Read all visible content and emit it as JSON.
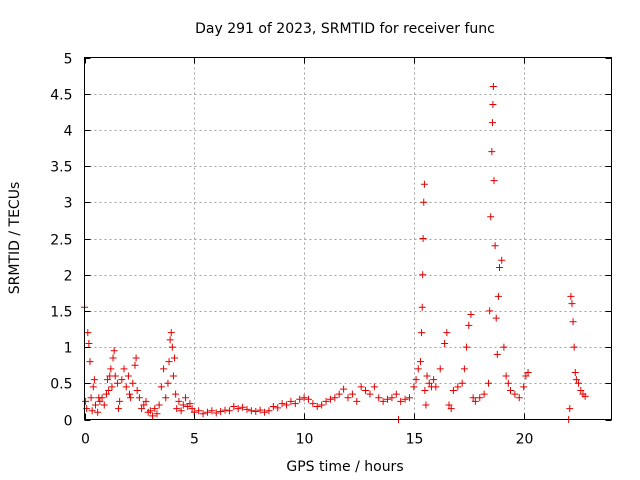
{
  "chart_data": {
    "type": "scatter",
    "title": "Day 291 of 2023, SRMTID for receiver func",
    "xlabel": "GPS time / hours",
    "ylabel": "SRMTID / TECUs",
    "xlim": [
      0,
      24
    ],
    "ylim": [
      0,
      5
    ],
    "x_ticks": [
      0,
      5,
      10,
      15,
      20
    ],
    "y_ticks": [
      0,
      0.5,
      1,
      1.5,
      2,
      2.5,
      3,
      3.5,
      4,
      4.5,
      5
    ],
    "x_tick_labels": [
      "0",
      "5",
      "10",
      "15",
      "20"
    ],
    "y_tick_labels": [
      "0",
      "0.5",
      "1",
      "1.5",
      "2",
      "2.5",
      "3",
      "3.5",
      "4",
      "4.5",
      "5"
    ],
    "grid": true,
    "marker": "plus",
    "color": "#e00000",
    "series": [
      {
        "name": "SRMTID",
        "points": [
          [
            0.0,
            1.55
          ],
          [
            0.05,
            0.25
          ],
          [
            0.1,
            0.15
          ],
          [
            0.15,
            1.2
          ],
          [
            0.2,
            1.05
          ],
          [
            0.25,
            0.8
          ],
          [
            0.3,
            0.3
          ],
          [
            0.35,
            0.12
          ],
          [
            0.4,
            0.45
          ],
          [
            0.45,
            0.55
          ],
          [
            0.5,
            0.2
          ],
          [
            0.6,
            0.1
          ],
          [
            0.65,
            0.3
          ],
          [
            0.7,
            0.25
          ],
          [
            0.8,
            0.3
          ],
          [
            0.9,
            0.2
          ],
          [
            1.0,
            0.35
          ],
          [
            1.05,
            0.55
          ],
          [
            1.1,
            0.4
          ],
          [
            1.15,
            0.6
          ],
          [
            1.2,
            0.7
          ],
          [
            1.25,
            0.45
          ],
          [
            1.3,
            0.85
          ],
          [
            1.35,
            0.95
          ],
          [
            1.4,
            0.6
          ],
          [
            1.5,
            0.5
          ],
          [
            1.55,
            0.15
          ],
          [
            1.6,
            0.25
          ],
          [
            1.7,
            0.55
          ],
          [
            1.8,
            0.7
          ],
          [
            1.9,
            0.45
          ],
          [
            2.0,
            0.6
          ],
          [
            2.05,
            0.35
          ],
          [
            2.1,
            0.3
          ],
          [
            2.2,
            0.5
          ],
          [
            2.3,
            0.75
          ],
          [
            2.35,
            0.85
          ],
          [
            2.4,
            0.4
          ],
          [
            2.5,
            0.3
          ],
          [
            2.6,
            0.15
          ],
          [
            2.7,
            0.2
          ],
          [
            2.8,
            0.25
          ],
          [
            2.9,
            0.1
          ],
          [
            3.0,
            0.12
          ],
          [
            3.1,
            0.05
          ],
          [
            3.2,
            0.15
          ],
          [
            3.3,
            0.08
          ],
          [
            3.4,
            0.2
          ],
          [
            3.5,
            0.45
          ],
          [
            3.6,
            0.7
          ],
          [
            3.7,
            0.3
          ],
          [
            3.8,
            0.5
          ],
          [
            3.85,
            0.8
          ],
          [
            3.9,
            1.1
          ],
          [
            3.95,
            1.2
          ],
          [
            4.0,
            1.0
          ],
          [
            4.05,
            0.6
          ],
          [
            4.1,
            0.85
          ],
          [
            4.15,
            0.35
          ],
          [
            4.2,
            0.15
          ],
          [
            4.3,
            0.25
          ],
          [
            4.4,
            0.12
          ],
          [
            4.5,
            0.2
          ],
          [
            4.6,
            0.3
          ],
          [
            4.7,
            0.18
          ],
          [
            4.8,
            0.22
          ],
          [
            4.9,
            0.15
          ],
          [
            5.0,
            0.1
          ],
          [
            5.2,
            0.12
          ],
          [
            5.4,
            0.08
          ],
          [
            5.6,
            0.1
          ],
          [
            5.8,
            0.12
          ],
          [
            6.0,
            0.09
          ],
          [
            6.2,
            0.11
          ],
          [
            6.4,
            0.13
          ],
          [
            6.6,
            0.12
          ],
          [
            6.8,
            0.18
          ],
          [
            7.0,
            0.15
          ],
          [
            7.2,
            0.17
          ],
          [
            7.4,
            0.14
          ],
          [
            7.6,
            0.12
          ],
          [
            7.8,
            0.11
          ],
          [
            8.0,
            0.13
          ],
          [
            8.2,
            0.1
          ],
          [
            8.4,
            0.12
          ],
          [
            8.6,
            0.18
          ],
          [
            8.8,
            0.16
          ],
          [
            9.0,
            0.22
          ],
          [
            9.2,
            0.2
          ],
          [
            9.4,
            0.25
          ],
          [
            9.6,
            0.22
          ],
          [
            9.8,
            0.28
          ],
          [
            10.0,
            0.3
          ],
          [
            10.2,
            0.28
          ],
          [
            10.4,
            0.22
          ],
          [
            10.6,
            0.18
          ],
          [
            10.8,
            0.2
          ],
          [
            11.0,
            0.25
          ],
          [
            11.2,
            0.28
          ],
          [
            11.4,
            0.3
          ],
          [
            11.6,
            0.35
          ],
          [
            11.8,
            0.42
          ],
          [
            12.0,
            0.3
          ],
          [
            12.2,
            0.35
          ],
          [
            12.4,
            0.25
          ],
          [
            12.6,
            0.45
          ],
          [
            12.8,
            0.4
          ],
          [
            13.0,
            0.35
          ],
          [
            13.2,
            0.45
          ],
          [
            13.4,
            0.3
          ],
          [
            13.6,
            0.25
          ],
          [
            13.8,
            0.28
          ],
          [
            14.0,
            0.3
          ],
          [
            14.2,
            0.35
          ],
          [
            14.4,
            0.25
          ],
          [
            14.6,
            0.28
          ],
          [
            14.8,
            0.3
          ],
          [
            15.0,
            0.45
          ],
          [
            15.1,
            0.55
          ],
          [
            15.2,
            0.7
          ],
          [
            15.3,
            0.8
          ],
          [
            15.35,
            1.2
          ],
          [
            15.38,
            1.55
          ],
          [
            15.4,
            2.0
          ],
          [
            15.42,
            2.5
          ],
          [
            15.45,
            3.0
          ],
          [
            15.48,
            3.25
          ],
          [
            15.5,
            0.4
          ],
          [
            15.55,
            0.2
          ],
          [
            15.6,
            0.6
          ],
          [
            15.7,
            0.5
          ],
          [
            15.8,
            0.45
          ],
          [
            15.9,
            0.55
          ],
          [
            16.0,
            0.45
          ],
          [
            16.2,
            0.7
          ],
          [
            16.4,
            1.05
          ],
          [
            16.5,
            1.2
          ],
          [
            16.6,
            0.2
          ],
          [
            16.7,
            0.15
          ],
          [
            16.8,
            0.4
          ],
          [
            17.0,
            0.45
          ],
          [
            17.2,
            0.5
          ],
          [
            17.3,
            0.7
          ],
          [
            17.4,
            1.0
          ],
          [
            17.5,
            1.3
          ],
          [
            17.6,
            1.45
          ],
          [
            17.7,
            0.3
          ],
          [
            17.8,
            0.25
          ],
          [
            18.0,
            0.3
          ],
          [
            18.2,
            0.35
          ],
          [
            18.4,
            0.5
          ],
          [
            18.45,
            1.5
          ],
          [
            18.5,
            2.8
          ],
          [
            18.55,
            3.7
          ],
          [
            18.58,
            4.1
          ],
          [
            18.6,
            4.35
          ],
          [
            18.62,
            4.6
          ],
          [
            18.65,
            3.3
          ],
          [
            18.7,
            2.4
          ],
          [
            18.75,
            1.4
          ],
          [
            18.8,
            0.9
          ],
          [
            18.85,
            1.7
          ],
          [
            18.9,
            2.1
          ],
          [
            19.0,
            2.2
          ],
          [
            19.1,
            1.0
          ],
          [
            19.2,
            0.6
          ],
          [
            19.3,
            0.5
          ],
          [
            19.4,
            0.4
          ],
          [
            19.6,
            0.35
          ],
          [
            19.8,
            0.3
          ],
          [
            20.0,
            0.45
          ],
          [
            20.1,
            0.6
          ],
          [
            20.2,
            0.65
          ],
          [
            22.1,
            0.15
          ],
          [
            22.15,
            1.7
          ],
          [
            22.2,
            1.6
          ],
          [
            22.25,
            1.35
          ],
          [
            22.3,
            1.0
          ],
          [
            22.35,
            0.65
          ],
          [
            22.4,
            0.55
          ],
          [
            22.5,
            0.5
          ],
          [
            22.6,
            0.4
          ],
          [
            22.7,
            0.35
          ],
          [
            22.8,
            0.32
          ],
          [
            14.3,
            0.0
          ],
          [
            22.05,
            0.0
          ]
        ]
      }
    ]
  }
}
